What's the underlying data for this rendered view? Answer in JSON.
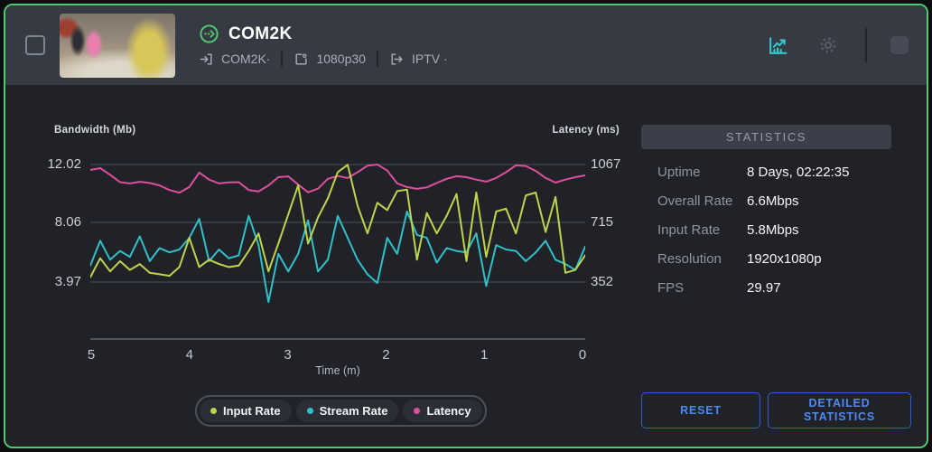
{
  "colors": {
    "card_border_green": "#4ecb71",
    "status_green": "#4ecb71",
    "chart_icon_teal": "#3bc6cd",
    "input_rate": "#bdd44d",
    "stream_rate": "#2fc0c9",
    "latency": "#dd4f9b",
    "button_blue": "#4d8af0",
    "header_bg": "#363a43",
    "content_bg": "#212227"
  },
  "header": {
    "title": "COM2K",
    "source_label": "COM2K·",
    "transcode_label": "1080p30",
    "output_label": "IPTV ·"
  },
  "chart_data": {
    "type": "line",
    "title": "",
    "xlabel": "Time (m)",
    "left_ylabel": "Bandwidth (Mb)",
    "right_ylabel": "Latency (ms)",
    "x_ticks": [
      5,
      4,
      3,
      2,
      1,
      0
    ],
    "left_ticks": [
      12.02,
      8.06,
      3.97
    ],
    "right_ticks": [
      1067,
      715,
      352
    ],
    "grid": "horizontal-only",
    "legend_position": "bottom-center",
    "series": [
      {
        "name": "Input Rate",
        "axis": "left",
        "color": "#bdd44d",
        "values": [
          4.3,
          5.6,
          4.7,
          5.4,
          4.8,
          5.2,
          4.6,
          4.5,
          4.4,
          5.0,
          7.0,
          5.0,
          5.5,
          5.2,
          5.0,
          5.1,
          6.1,
          7.3,
          4.7,
          6.6,
          8.6,
          10.6,
          6.6,
          8.4,
          9.7,
          11.5,
          12.0,
          9.2,
          7.3,
          9.4,
          8.9,
          10.2,
          10.3,
          5.5,
          8.7,
          7.3,
          8.5,
          10.0,
          5.4,
          10.1,
          5.7,
          8.8,
          9.0,
          7.3,
          9.9,
          10.1,
          7.4,
          9.8,
          4.6,
          4.8,
          5.8
        ]
      },
      {
        "name": "Stream Rate",
        "axis": "left",
        "color": "#2fc0c9",
        "values": [
          5.1,
          6.8,
          5.5,
          6.1,
          5.7,
          7.1,
          5.4,
          6.3,
          6.0,
          6.2,
          7.0,
          8.3,
          5.4,
          6.2,
          5.6,
          5.8,
          8.5,
          6.5,
          2.6,
          5.9,
          4.7,
          5.9,
          8.2,
          4.7,
          5.5,
          8.5,
          7.0,
          5.5,
          4.5,
          3.9,
          7.0,
          5.9,
          8.8,
          7.2,
          7.0,
          5.3,
          6.3,
          6.1,
          6.0,
          7.3,
          3.7,
          6.5,
          6.2,
          6.1,
          5.4,
          6.0,
          6.8,
          5.5,
          5.2,
          4.8,
          6.4
        ]
      },
      {
        "name": "Latency",
        "axis": "right",
        "color": "#dd4f9b",
        "values": [
          1034,
          1045,
          1005,
          960,
          952,
          962,
          955,
          940,
          912,
          896,
          930,
          1018,
          975,
          952,
          958,
          960,
          912,
          903,
          940,
          990,
          995,
          945,
          898,
          920,
          980,
          997,
          985,
          1020,
          1060,
          1067,
          1030,
          952,
          930,
          919,
          928,
          955,
          980,
          996,
          990,
          975,
          963,
          985,
          1020,
          1062,
          1058,
          1028,
          985,
          957,
          975,
          990,
          1001
        ]
      }
    ]
  },
  "stats": {
    "header": "STATISTICS",
    "rows": [
      {
        "label": "Uptime",
        "value": "8 Days, 02:22:35"
      },
      {
        "label": "Overall Rate",
        "value": "6.6Mbps"
      },
      {
        "label": "Input Rate",
        "value": "5.8Mbps"
      },
      {
        "label": "Resolution",
        "value": "1920x1080p"
      },
      {
        "label": "FPS",
        "value": "29.97"
      }
    ]
  },
  "buttons": {
    "reset": "RESET",
    "detailed": "DETAILED STATISTICS"
  }
}
